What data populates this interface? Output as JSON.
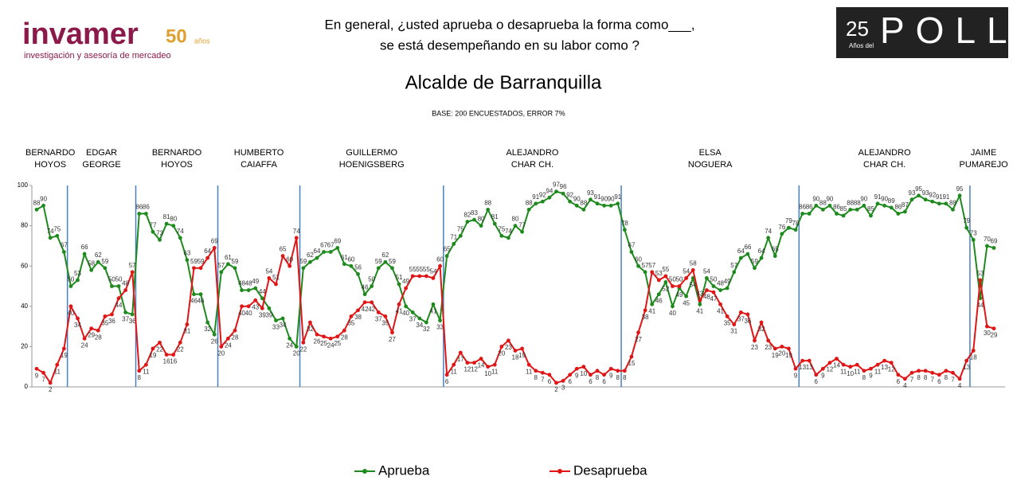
{
  "logo": {
    "brand": "invamer",
    "anniversary": "50",
    "anniversary_unit": "años",
    "tagline": "investigación y asesoría de mercadeo"
  },
  "poll_logo": {
    "number": "25",
    "small": "Años del",
    "word": "POLL"
  },
  "chart_data": {
    "type": "line",
    "title_lines": [
      "En general, ¿usted aprueba o desaprueba la forma como___,",
      "se está desempeñando en su labor como ?"
    ],
    "title": "Alcalde de Barranquilla",
    "subtitle": "BASE: 200 ENCUESTADOS, ERROR 7%",
    "periods": [
      [
        "BERNARDO",
        "HOYOS"
      ],
      [
        "EDGAR",
        "GEORGE"
      ],
      [
        "BERNARDO",
        "HOYOS"
      ],
      [
        "HUMBERTO",
        "CAIAFFA"
      ],
      [
        "GUILLERMO",
        "HOENIGSBERG"
      ],
      [
        "ALEJANDRO",
        "CHAR CH."
      ],
      [
        "ELSA",
        "NOGUERA"
      ],
      [
        "ALEJANDRO",
        "CHAR CH."
      ],
      [
        "JAIME",
        "PUMAREJO"
      ]
    ],
    "ylim": [
      0,
      100
    ],
    "yticks": [
      0,
      20,
      40,
      60,
      80,
      100
    ],
    "legend": "bottom",
    "series": [
      {
        "name": "Aprueba",
        "color": "#1e8a1e",
        "values": [
          88,
          90,
          74,
          75,
          67,
          50,
          53,
          66,
          58,
          62,
          59,
          50,
          50,
          37,
          36,
          86,
          86,
          77,
          73,
          81,
          80,
          74,
          63,
          46,
          46,
          32,
          26,
          57,
          61,
          59,
          48,
          48,
          49,
          44,
          39,
          33,
          34,
          24,
          20,
          59,
          62,
          64,
          67,
          67,
          69,
          61,
          60,
          56,
          46,
          50,
          59,
          62,
          59,
          51,
          40,
          37,
          34,
          32,
          41,
          33,
          65,
          71,
          75,
          82,
          83,
          80,
          88,
          81,
          75,
          74,
          80,
          77,
          88,
          91,
          92,
          94,
          97,
          96,
          92,
          90,
          88,
          93,
          91,
          90,
          90,
          91,
          78,
          67,
          60,
          57,
          41,
          46,
          52,
          40,
          49,
          45,
          54,
          41,
          54,
          50,
          48,
          49,
          57,
          64,
          66,
          59,
          64,
          74,
          65,
          76,
          79,
          78,
          86,
          86,
          90,
          88,
          90,
          86,
          85,
          88,
          88,
          90,
          85,
          91,
          90,
          89,
          86,
          87,
          93,
          95,
          93,
          92,
          91,
          91,
          88,
          95,
          79,
          73,
          44,
          70,
          69
        ]
      },
      {
        "name": "Desaprueba",
        "color": "#e01515",
        "values": [
          9,
          7,
          2,
          11,
          19,
          40,
          34,
          24,
          29,
          28,
          35,
          36,
          44,
          48,
          57,
          8,
          11,
          19,
          22,
          16,
          16,
          22,
          31,
          59,
          59,
          64,
          69,
          20,
          24,
          28,
          40,
          40,
          43,
          39,
          54,
          51,
          65,
          60,
          74,
          22,
          32,
          26,
          25,
          24,
          25,
          28,
          35,
          38,
          42,
          42,
          37,
          35,
          27,
          41,
          49,
          55,
          55,
          55,
          54,
          60,
          6,
          11,
          17,
          12,
          12,
          14,
          10,
          11,
          20,
          23,
          18,
          19,
          11,
          8,
          7,
          6,
          2,
          3,
          6,
          9,
          10,
          6,
          8,
          6,
          9,
          8,
          8,
          15,
          27,
          38,
          57,
          53,
          55,
          50,
          50,
          54,
          58,
          43,
          48,
          47,
          41,
          35,
          31,
          37,
          36,
          23,
          32,
          23,
          19,
          20,
          19,
          9,
          13,
          13,
          6,
          9,
          12,
          14,
          11,
          10,
          11,
          8,
          9,
          11,
          13,
          12,
          6,
          4,
          7,
          8,
          8,
          7,
          6,
          8,
          7,
          4,
          13,
          18,
          53,
          30,
          29
        ]
      }
    ]
  }
}
